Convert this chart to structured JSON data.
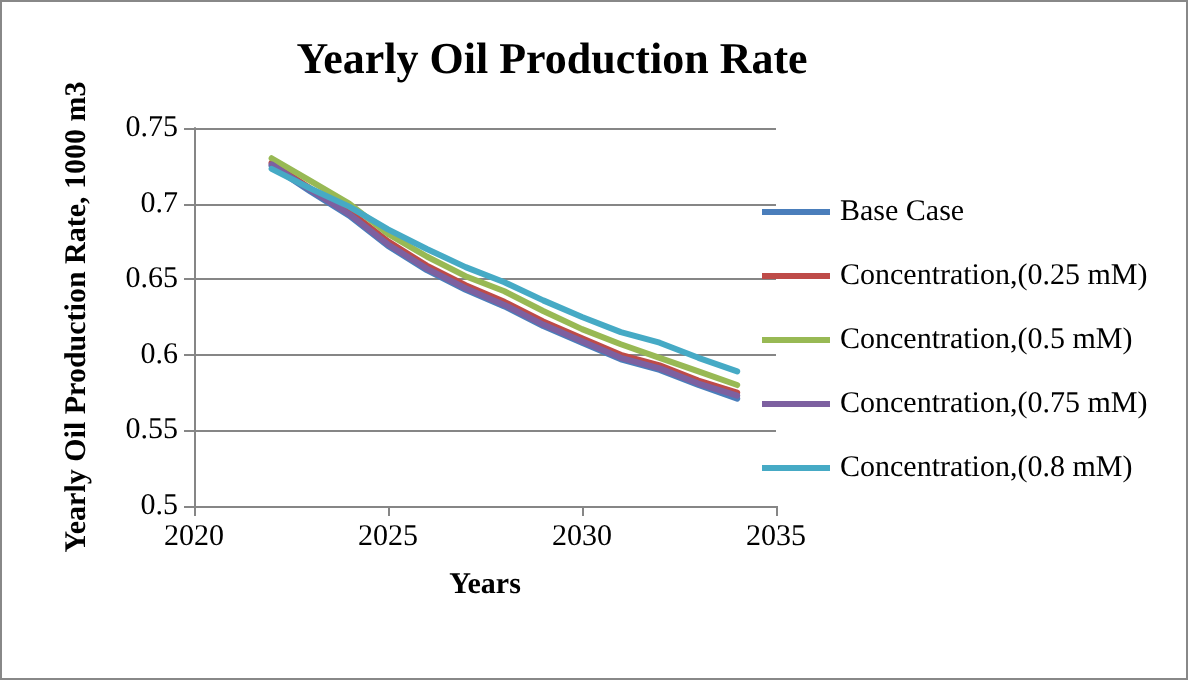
{
  "chart_data": {
    "type": "line",
    "title": "Yearly Oil Production Rate",
    "xlabel": "Years",
    "ylabel": "Yearly Oil Production Rate, 1000 m3",
    "x": [
      2022,
      2023,
      2024,
      2025,
      2026,
      2027,
      2028,
      2029,
      2030,
      2031,
      2032,
      2033,
      2034
    ],
    "series": [
      {
        "name": "Base Case",
        "color": "#4a7ebb",
        "values": [
          0.725,
          0.708,
          0.692,
          0.672,
          0.656,
          0.643,
          0.632,
          0.619,
          0.608,
          0.597,
          0.59,
          0.58,
          0.571
        ]
      },
      {
        "name": "Concentration,(0.25 mM)",
        "color": "#be4b48",
        "values": [
          0.727,
          0.71,
          0.695,
          0.675,
          0.659,
          0.646,
          0.635,
          0.622,
          0.611,
          0.6,
          0.593,
          0.583,
          0.575
        ]
      },
      {
        "name": "Concentration,(0.5 mM)",
        "color": "#98b954",
        "values": [
          0.73,
          0.715,
          0.7,
          0.68,
          0.665,
          0.652,
          0.642,
          0.629,
          0.617,
          0.607,
          0.598,
          0.589,
          0.58
        ]
      },
      {
        "name": "Concentration,(0.75 mM)",
        "color": "#7d60a0",
        "values": [
          0.726,
          0.709,
          0.693,
          0.673,
          0.657,
          0.644,
          0.633,
          0.62,
          0.609,
          0.598,
          0.591,
          0.581,
          0.573
        ]
      },
      {
        "name": "Concentration,(0.8 mM)",
        "color": "#46aac5",
        "values": [
          0.723,
          0.71,
          0.698,
          0.683,
          0.67,
          0.658,
          0.648,
          0.636,
          0.625,
          0.615,
          0.608,
          0.598,
          0.589
        ]
      }
    ],
    "xlim": [
      2020,
      2035
    ],
    "xticks": [
      2020,
      2025,
      2030,
      2035
    ],
    "ylim": [
      0.5,
      0.75
    ],
    "yticks": [
      0.5,
      0.55,
      0.6,
      0.65,
      0.7,
      0.75
    ],
    "grid": "y",
    "legend": "right",
    "marker": "none",
    "line_style": "solid"
  }
}
